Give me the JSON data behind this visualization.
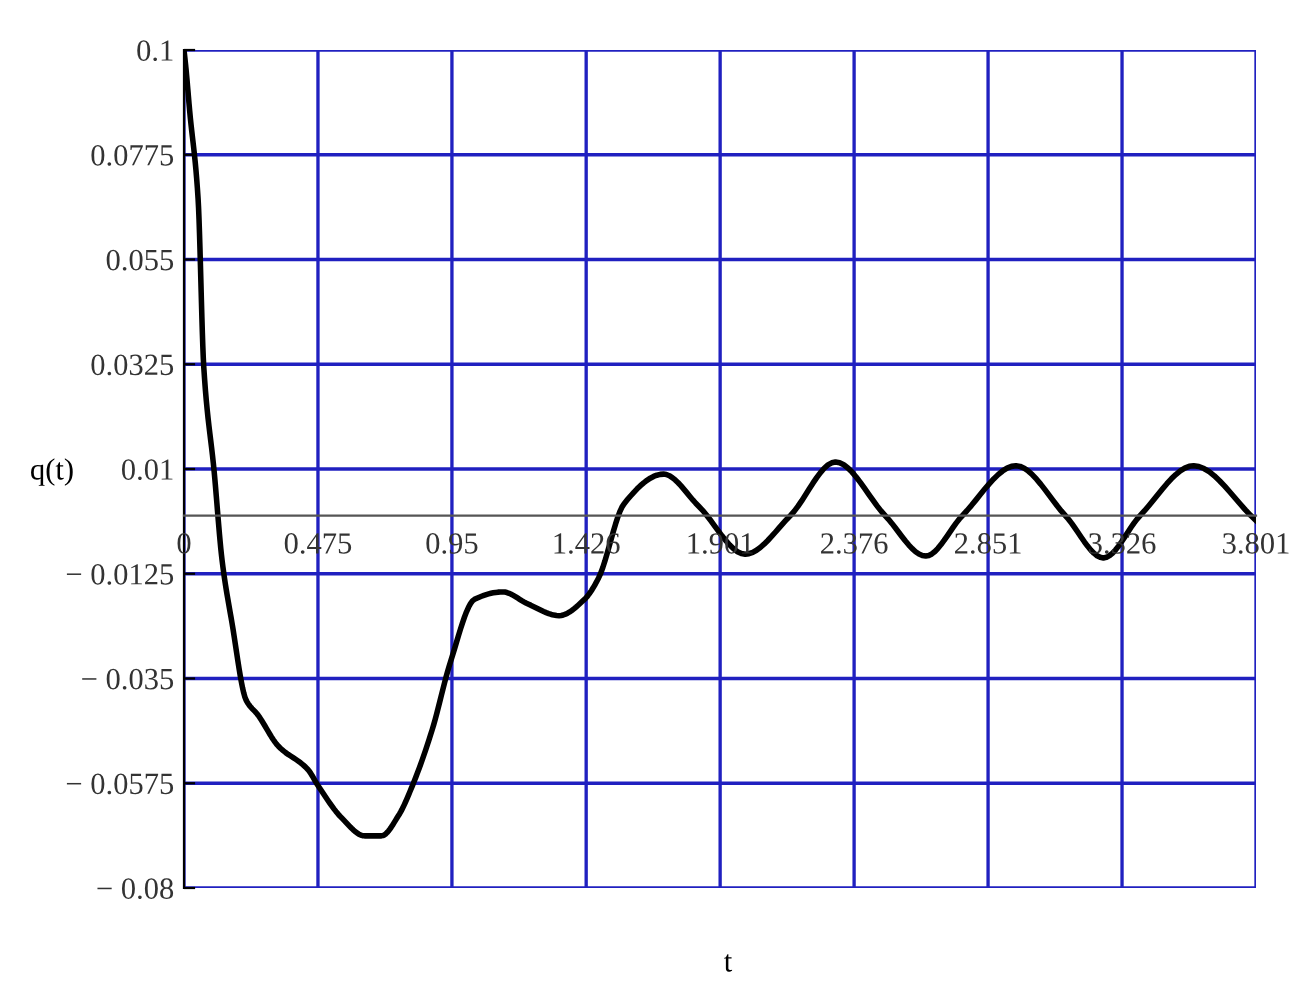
{
  "chart_data": {
    "type": "line",
    "xlabel": "t",
    "ylabel": "q(t)",
    "x": [
      0,
      0.007,
      0.02,
      0.05,
      0.07,
      0.107,
      0.135,
      0.17,
      0.22,
      0.263,
      0.334,
      0.44,
      0.475,
      0.56,
      0.64,
      0.7,
      0.76,
      0.81,
      0.88,
      0.945,
      1.03,
      1.13,
      1.22,
      1.33,
      1.42,
      1.47,
      1.56,
      1.7,
      1.825,
      1.99,
      2.15,
      2.31,
      2.486,
      2.63,
      2.76,
      2.95,
      3.125,
      3.26,
      3.39,
      3.58,
      3.8
    ],
    "series": [
      {
        "color": "#000000",
        "values": [
          0.1,
          0.096,
          0.087,
          0.068,
          0.032,
          0.0094,
          -0.0096,
          -0.023,
          -0.0396,
          -0.0429,
          -0.0495,
          -0.0546,
          -0.058,
          -0.065,
          -0.0688,
          -0.0688,
          -0.0645,
          -0.058,
          -0.046,
          -0.0314,
          -0.018,
          -0.0164,
          -0.019,
          -0.0215,
          -0.018,
          -0.0134,
          0.0025,
          0.0089,
          0.002,
          -0.0083,
          0,
          0.0115,
          0,
          -0.0087,
          0,
          0.0107,
          0,
          -0.0091,
          0,
          0.0107,
          -0.001
        ]
      }
    ],
    "xlim": [
      0,
      3.801
    ],
    "ylim": [
      -0.08,
      0.1
    ],
    "xticks": [
      0,
      0.475,
      0.95,
      1.426,
      1.901,
      2.376,
      2.851,
      3.326,
      3.801
    ],
    "yticks": [
      0.1,
      0.0775,
      0.055,
      0.0325,
      0.01,
      {
        "value": -0.0125,
        "label": "− 0.0125"
      },
      {
        "value": -0.035,
        "label": "− 0.035"
      },
      {
        "value": -0.0575,
        "label": "− 0.0575"
      },
      {
        "value": -0.08,
        "label": "− 0.08"
      }
    ],
    "grid": true,
    "line_style": "solid",
    "marker": "none"
  }
}
